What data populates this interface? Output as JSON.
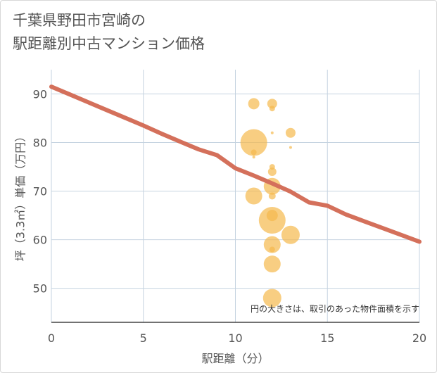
{
  "title_lines": [
    "千葉県野田市宮崎の",
    "駅距離別中古マンション価格"
  ],
  "colors": {
    "line": "#d4705b",
    "bubble": "#f5b94d",
    "grid": "#c5d3e0",
    "text": "#555555"
  },
  "chart_data": {
    "type": "scatter",
    "xlabel": "駅距離（分）",
    "ylabel": "坪（3.3㎡）単価（万円）",
    "xlim": [
      0,
      20
    ],
    "ylim": [
      43,
      95
    ],
    "x_ticks": [
      0,
      5,
      10,
      15,
      20
    ],
    "y_ticks": [
      50,
      60,
      70,
      80,
      90
    ],
    "grid": true,
    "note": "円の大きさは、取引のあった物件面積を示す",
    "line_series": {
      "x": [
        0,
        1,
        2,
        3,
        4,
        5,
        6,
        7,
        8,
        9,
        10,
        11,
        12,
        13,
        14,
        15,
        16,
        17,
        18,
        19,
        20
      ],
      "y": [
        91.5,
        89.9,
        88.3,
        86.7,
        85.1,
        83.5,
        81.8,
        80.2,
        78.6,
        77.4,
        74.7,
        73.2,
        71.6,
        69.9,
        67.7,
        67.0,
        65.2,
        63.8,
        62.4,
        61.0,
        59.6
      ]
    },
    "bubbles": [
      {
        "x": 11,
        "y": 88.0,
        "size": 8
      },
      {
        "x": 12,
        "y": 88.0,
        "size": 7
      },
      {
        "x": 12,
        "y": 87.0,
        "size": 4
      },
      {
        "x": 12,
        "y": 82.0,
        "size": 2
      },
      {
        "x": 13,
        "y": 82.0,
        "size": 7
      },
      {
        "x": 13,
        "y": 79.0,
        "size": 2
      },
      {
        "x": 11,
        "y": 80.0,
        "size": 19
      },
      {
        "x": 11,
        "y": 78.0,
        "size": 4
      },
      {
        "x": 11,
        "y": 77.0,
        "size": 2
      },
      {
        "x": 12,
        "y": 75.0,
        "size": 4
      },
      {
        "x": 12,
        "y": 74.0,
        "size": 6
      },
      {
        "x": 12,
        "y": 71.0,
        "size": 12
      },
      {
        "x": 12,
        "y": 69.0,
        "size": 5
      },
      {
        "x": 11,
        "y": 69.0,
        "size": 12
      },
      {
        "x": 12,
        "y": 65.0,
        "size": 8
      },
      {
        "x": 12,
        "y": 64.0,
        "size": 19
      },
      {
        "x": 13,
        "y": 61.0,
        "size": 13
      },
      {
        "x": 12,
        "y": 59.0,
        "size": 12
      },
      {
        "x": 12,
        "y": 58.0,
        "size": 4
      },
      {
        "x": 12,
        "y": 55.0,
        "size": 12
      },
      {
        "x": 12,
        "y": 48.0,
        "size": 13
      }
    ]
  }
}
